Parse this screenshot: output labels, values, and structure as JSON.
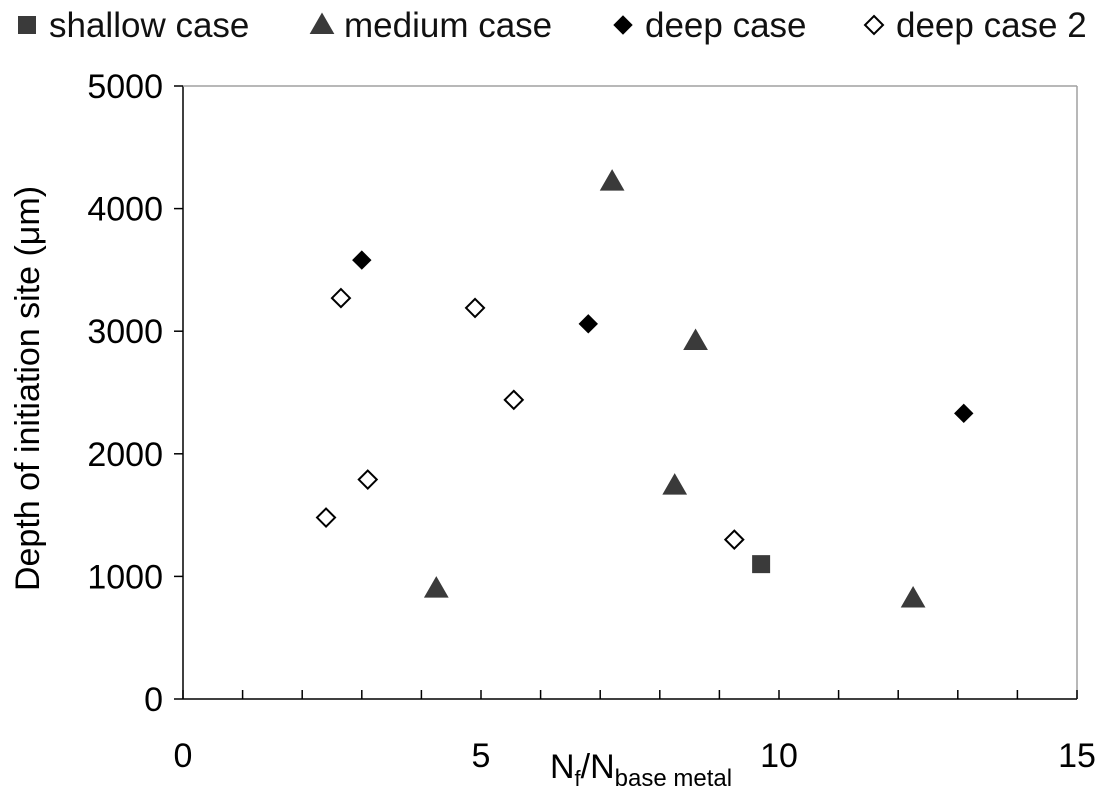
{
  "chart_data": {
    "type": "scatter",
    "title": "",
    "xlabel": {
      "base": "N",
      "sub1": "f",
      "mid": "/N",
      "sub2": "base metal"
    },
    "ylabel": "Depth of initiation site (μm)",
    "xlim": [
      0,
      15
    ],
    "ylim": [
      0,
      5000
    ],
    "x_ticks": [
      0,
      5,
      10,
      15
    ],
    "x_minor_step": 1,
    "y_ticks": [
      0,
      1000,
      2000,
      3000,
      4000,
      5000
    ],
    "grid": false,
    "legend_position": "top",
    "series": [
      {
        "name": "shallow case",
        "marker": "square",
        "filled": true,
        "color": "#3a3a3a",
        "points": [
          {
            "x": 9.7,
            "y": 1100
          }
        ]
      },
      {
        "name": "medium case",
        "marker": "triangle",
        "filled": true,
        "color": "#3a3a3a",
        "points": [
          {
            "x": 7.2,
            "y": 4220
          },
          {
            "x": 8.6,
            "y": 2920
          },
          {
            "x": 8.25,
            "y": 1740
          },
          {
            "x": 4.25,
            "y": 900
          },
          {
            "x": 12.25,
            "y": 820
          }
        ]
      },
      {
        "name": "deep case",
        "marker": "diamond",
        "filled": true,
        "color": "#000000",
        "points": [
          {
            "x": 3.0,
            "y": 3580
          },
          {
            "x": 6.8,
            "y": 3060
          },
          {
            "x": 13.1,
            "y": 2330
          }
        ]
      },
      {
        "name": "deep case 2",
        "marker": "diamond",
        "filled": false,
        "color": "#000000",
        "points": [
          {
            "x": 2.65,
            "y": 3270
          },
          {
            "x": 4.9,
            "y": 3190
          },
          {
            "x": 5.55,
            "y": 2440
          },
          {
            "x": 3.1,
            "y": 1790
          },
          {
            "x": 2.4,
            "y": 1480
          },
          {
            "x": 9.25,
            "y": 1300
          }
        ]
      }
    ]
  }
}
